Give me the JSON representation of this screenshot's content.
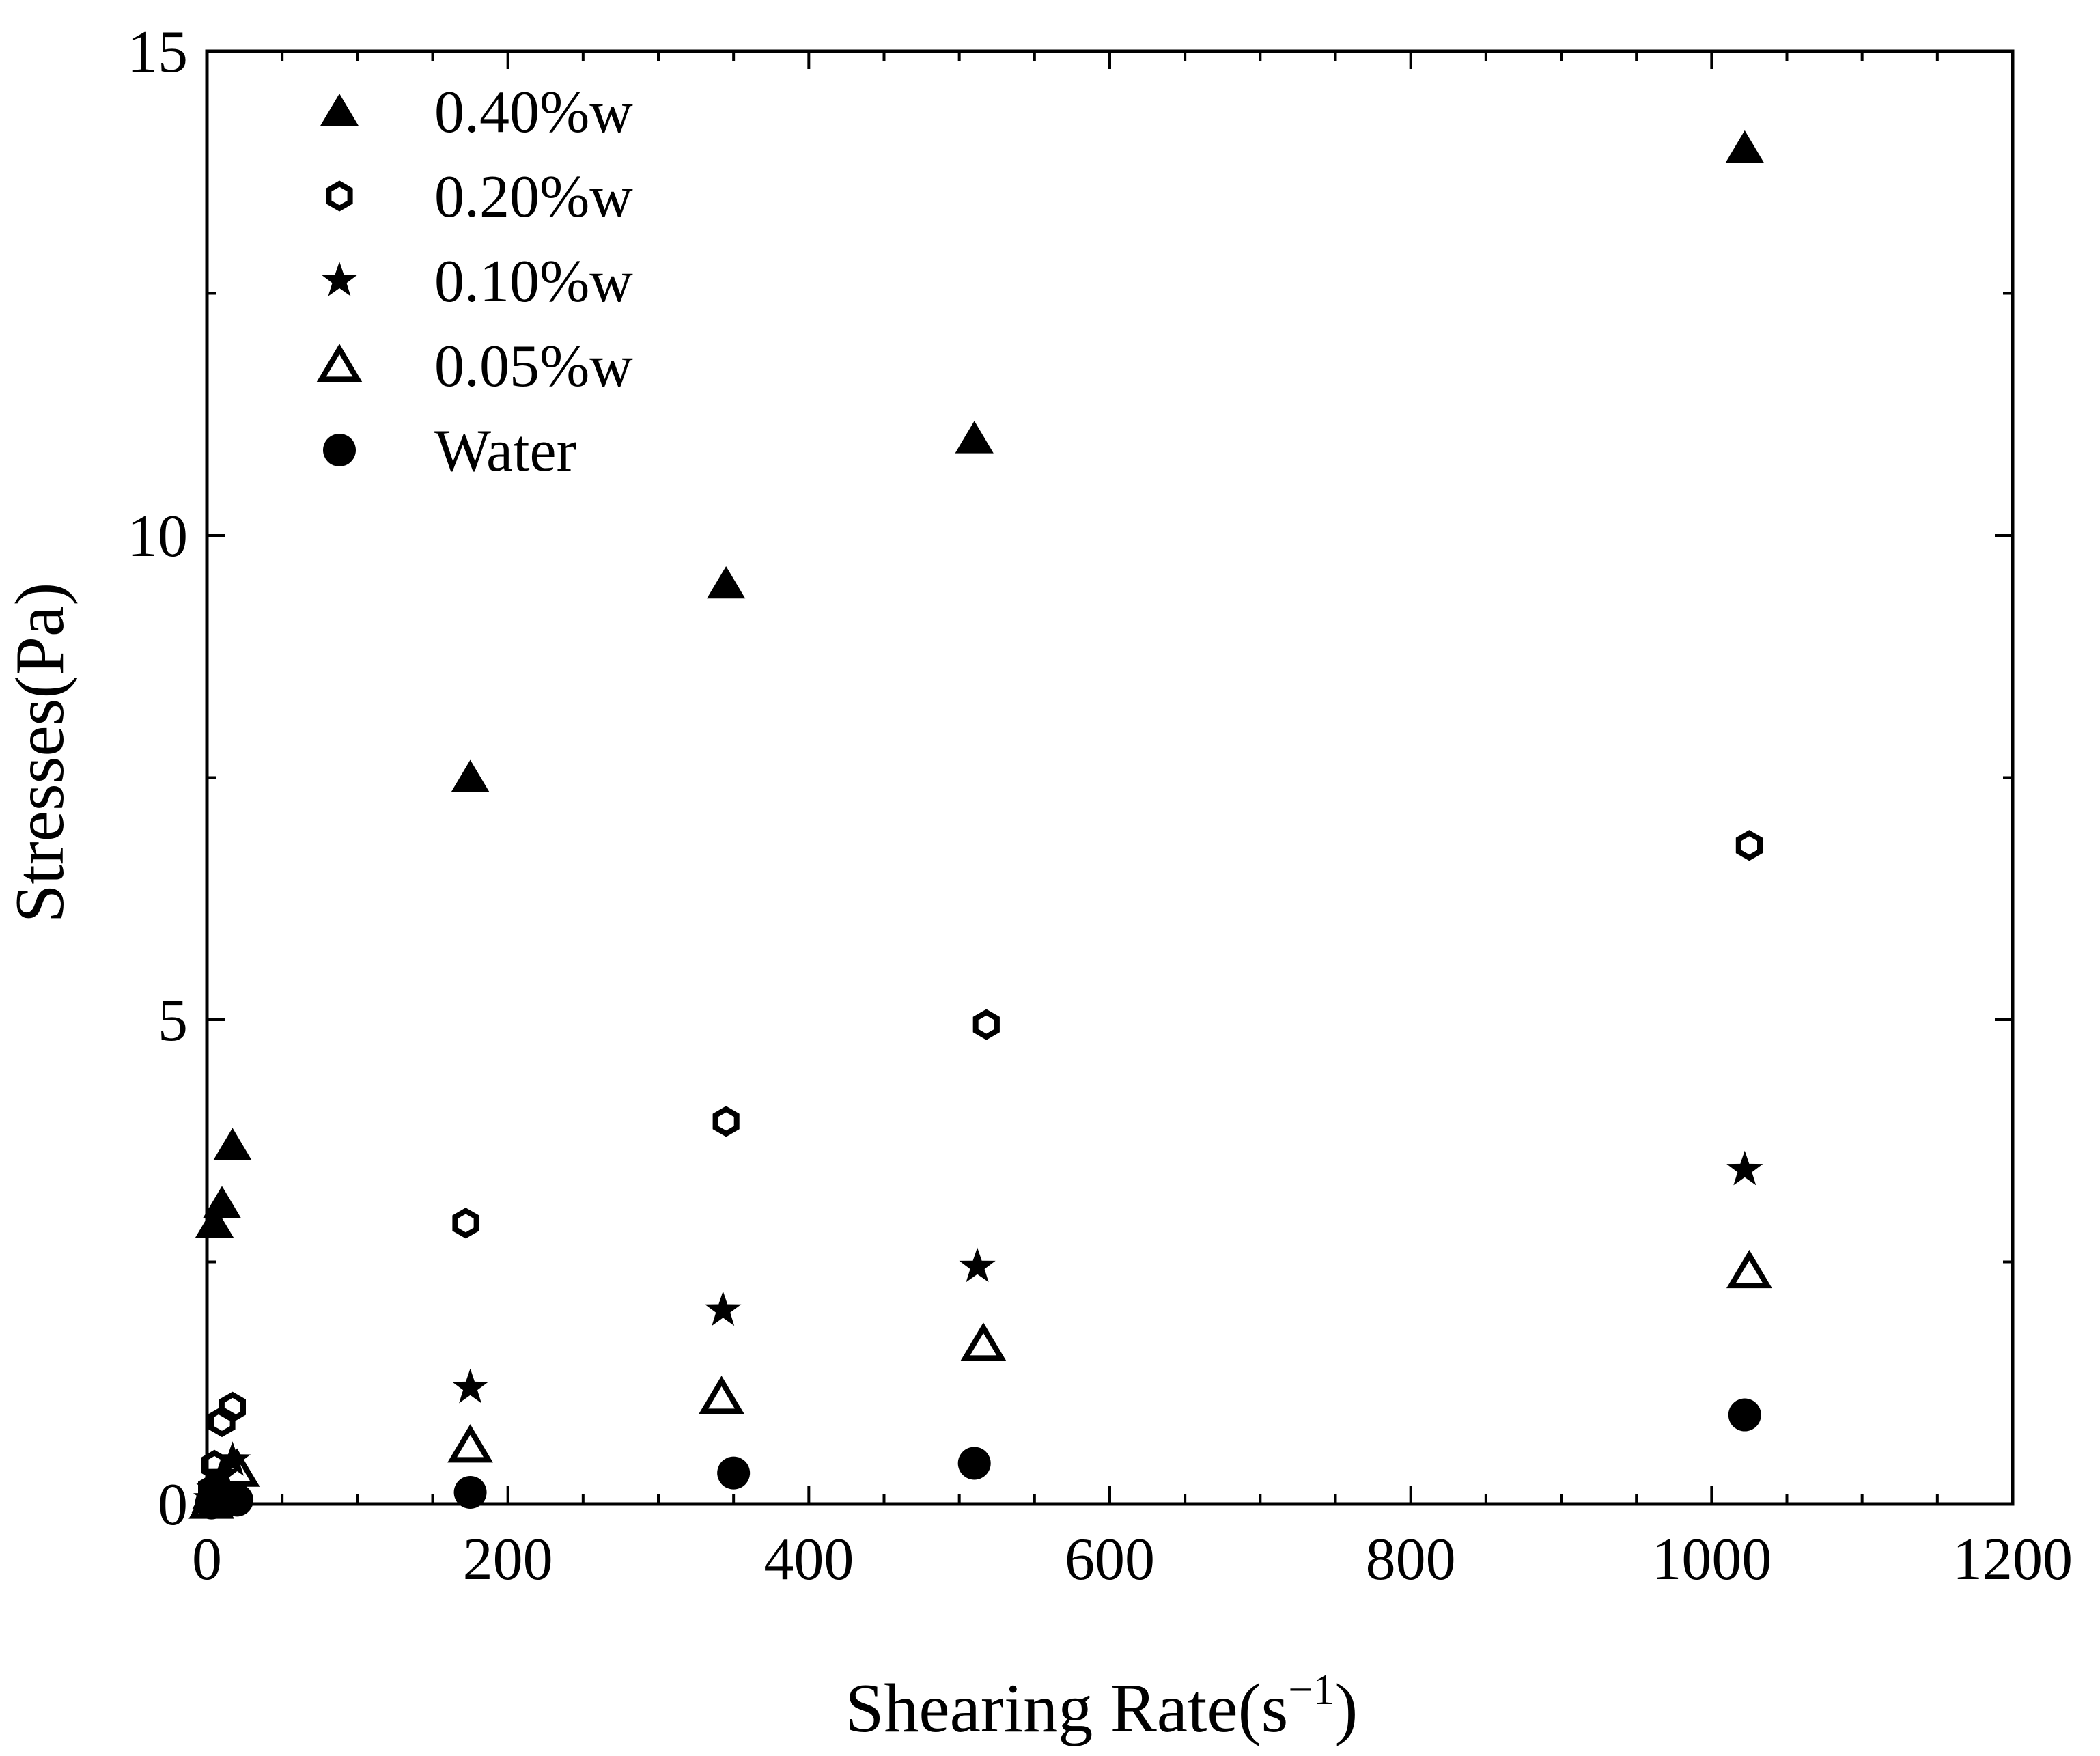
{
  "chart_data": {
    "type": "scatter",
    "title": "",
    "xlabel": "Shearing Rate(s",
    "xlabel_sup": "−1",
    "xlabel_close": ")",
    "ylabel": "Stresses(Pa)",
    "xlim": [
      0,
      1200
    ],
    "ylim": [
      0,
      15
    ],
    "xticks": [
      0,
      200,
      400,
      600,
      800,
      1000,
      1200
    ],
    "xtick_labels": [
      "0",
      "200",
      "400",
      "600",
      "800",
      "1000",
      "1200"
    ],
    "yticks": [
      0,
      5,
      10,
      15
    ],
    "ytick_labels": [
      "0",
      "5",
      "10",
      "15"
    ],
    "x_minor_step": 50,
    "y_minor_step": 2.5,
    "grid": false,
    "legend_position": "top-left",
    "series": [
      {
        "name": "0.40%w",
        "marker": "filled-triangle",
        "x": [
          3,
          5,
          10,
          17,
          175,
          345,
          510,
          1022
        ],
        "y": [
          0.1,
          2.9,
          3.1,
          3.7,
          7.5,
          9.5,
          11.0,
          14.0
        ]
      },
      {
        "name": "0.20%w",
        "marker": "open-hexagon",
        "x": [
          3,
          5,
          10,
          17,
          172,
          345,
          518,
          1025
        ],
        "y": [
          0.15,
          0.4,
          0.85,
          1.0,
          2.9,
          3.95,
          4.95,
          6.8
        ]
      },
      {
        "name": "0.10%w",
        "marker": "filled-star",
        "x": [
          3,
          5,
          10,
          17,
          175,
          343,
          512,
          1022
        ],
        "y": [
          0.05,
          0.15,
          0.3,
          0.45,
          1.2,
          2.0,
          2.45,
          3.45
        ]
      },
      {
        "name": "0.05%w",
        "marker": "open-triangle",
        "x": [
          3,
          5,
          10,
          20,
          175,
          342,
          516,
          1025
        ],
        "y": [
          0.02,
          0.08,
          0.15,
          0.35,
          0.6,
          1.1,
          1.65,
          2.4
        ]
      },
      {
        "name": "Water",
        "marker": "filled-circle",
        "x": [
          3,
          5,
          10,
          20,
          175,
          350,
          510,
          1022
        ],
        "y": [
          0.01,
          0.02,
          0.03,
          0.04,
          0.12,
          0.32,
          0.42,
          0.92
        ]
      }
    ]
  }
}
